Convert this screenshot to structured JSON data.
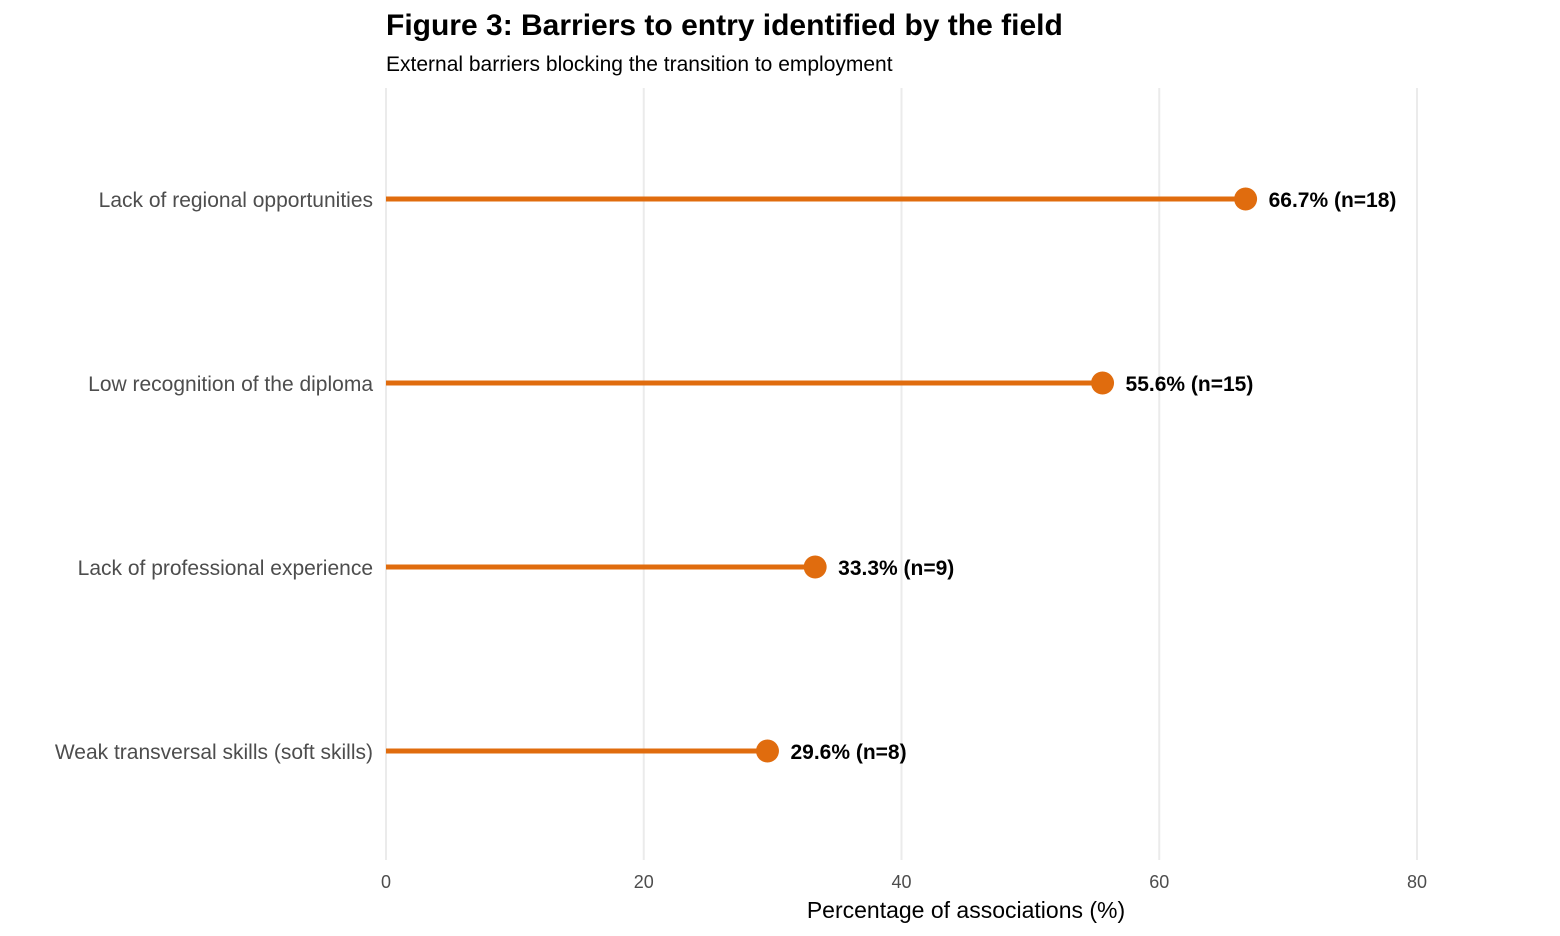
{
  "chart_data": {
    "type": "lollipop",
    "title": "Figure 3: Barriers to entry identified by the field",
    "subtitle": "External barriers blocking the transition to employment",
    "xlabel": "Percentage of associations (%)",
    "ylabel": "",
    "xlim": [
      0,
      80
    ],
    "xticks": [
      0,
      20,
      40,
      60,
      80
    ],
    "grid": "vertical major gridlines",
    "orientation": "horizontal",
    "color": "#E06C0E",
    "categories": [
      "Lack of regional opportunities",
      "Low recognition of the diploma",
      "Lack of professional experience",
      "Weak transversal skills (soft skills)"
    ],
    "values": [
      66.7,
      55.6,
      33.3,
      29.6
    ],
    "counts": [
      18,
      15,
      9,
      8
    ],
    "data_labels": [
      "66.7% (n=18)",
      "55.6% (n=15)",
      "33.3% (n=9)",
      "29.6% (n=8)"
    ]
  }
}
